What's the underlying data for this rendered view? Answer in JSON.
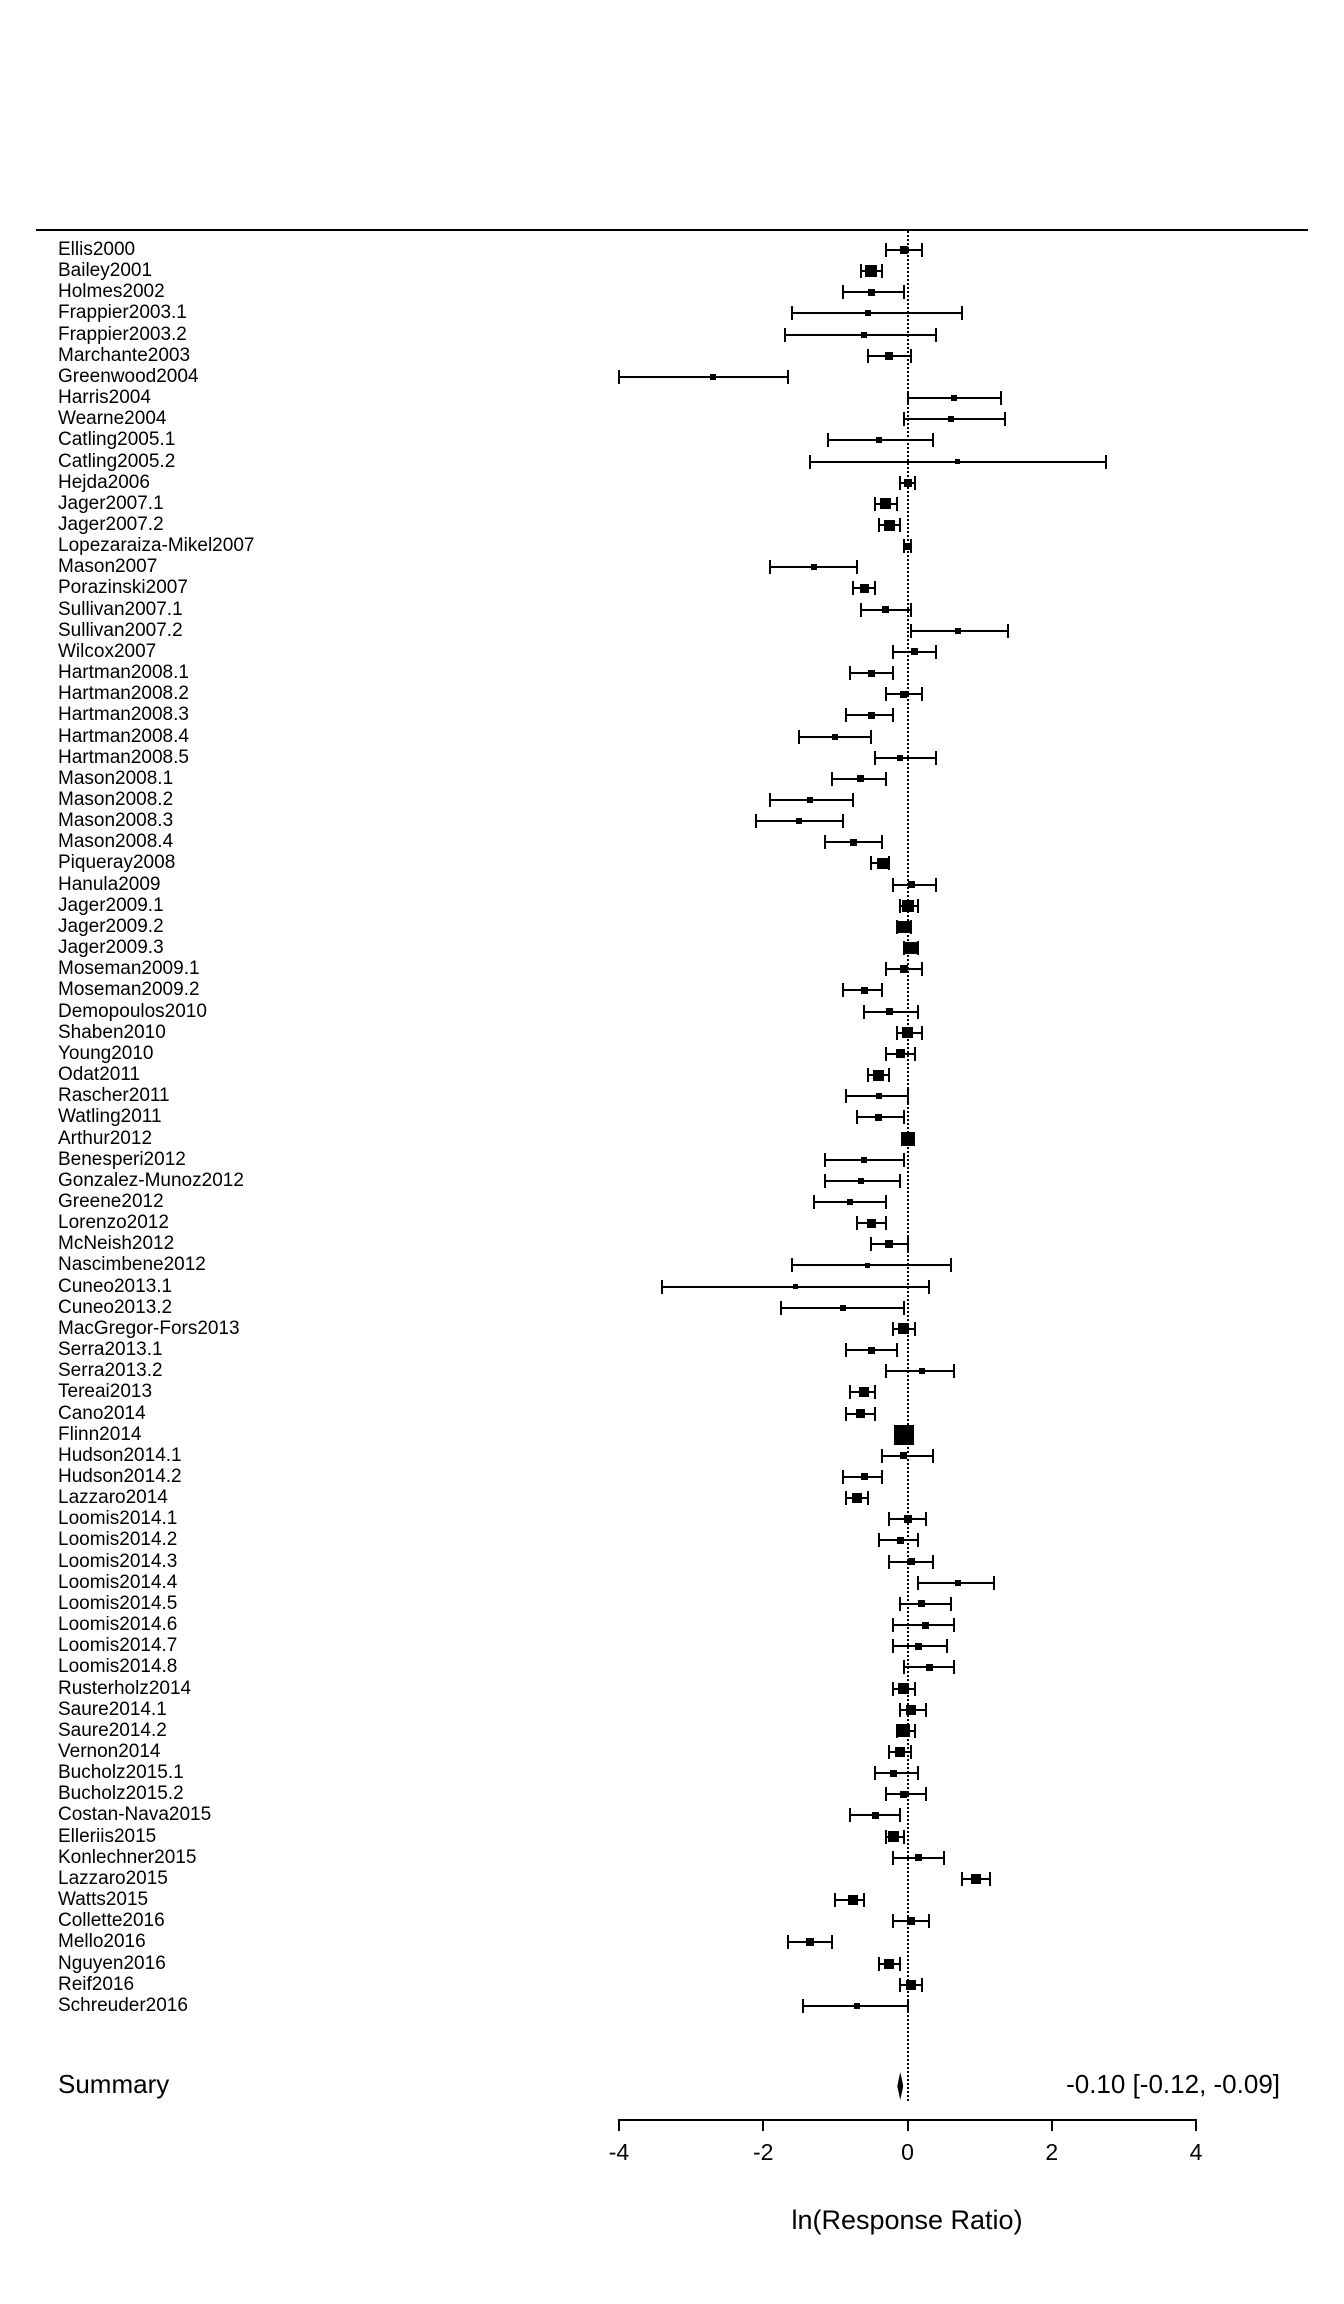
{
  "colors": {
    "marker": "#000000",
    "line": "#000000",
    "text": "#000000",
    "background": "#ffffff"
  },
  "chart_data": {
    "type": "forest",
    "xlabel": "ln(Response Ratio)",
    "xlim": [
      -4,
      4
    ],
    "xticks": [
      -4,
      -2,
      0,
      2,
      4
    ],
    "zero_line": 0,
    "grid": false,
    "studies": [
      {
        "name": "Ellis2000",
        "est": -0.05,
        "lo": -0.3,
        "hi": 0.2,
        "size": 8
      },
      {
        "name": "Bailey2001",
        "est": -0.5,
        "lo": -0.65,
        "hi": -0.35,
        "size": 12
      },
      {
        "name": "Holmes2002",
        "est": -0.5,
        "lo": -0.9,
        "hi": -0.05,
        "size": 7
      },
      {
        "name": "Frappier2003.1",
        "est": -0.55,
        "lo": -1.6,
        "hi": 0.75,
        "size": 6
      },
      {
        "name": "Frappier2003.2",
        "est": -0.6,
        "lo": -1.7,
        "hi": 0.4,
        "size": 6
      },
      {
        "name": "Marchante2003",
        "est": -0.25,
        "lo": -0.55,
        "hi": 0.05,
        "size": 8
      },
      {
        "name": "Greenwood2004",
        "est": -2.7,
        "lo": -4.0,
        "hi": -1.65,
        "size": 6
      },
      {
        "name": "Harris2004",
        "est": 0.65,
        "lo": 0.0,
        "hi": 1.3,
        "size": 6
      },
      {
        "name": "Wearne2004",
        "est": 0.6,
        "lo": -0.05,
        "hi": 1.35,
        "size": 6
      },
      {
        "name": "Catling2005.1",
        "est": -0.4,
        "lo": -1.1,
        "hi": 0.35,
        "size": 6
      },
      {
        "name": "Catling2005.2",
        "est": 0.7,
        "lo": -1.35,
        "hi": 2.75,
        "size": 5
      },
      {
        "name": "Hejda2006",
        "est": 0.0,
        "lo": -0.1,
        "hi": 0.1,
        "size": 8
      },
      {
        "name": "Jager2007.1",
        "est": -0.3,
        "lo": -0.45,
        "hi": -0.15,
        "size": 11
      },
      {
        "name": "Jager2007.2",
        "est": -0.25,
        "lo": -0.4,
        "hi": -0.1,
        "size": 11
      },
      {
        "name": "Lopezaraiza-Mikel2007",
        "est": 0.0,
        "lo": -0.05,
        "hi": 0.05,
        "size": 7
      },
      {
        "name": "Mason2007",
        "est": -1.3,
        "lo": -1.9,
        "hi": -0.7,
        "size": 6
      },
      {
        "name": "Porazinski2007",
        "est": -0.6,
        "lo": -0.75,
        "hi": -0.45,
        "size": 9
      },
      {
        "name": "Sullivan2007.1",
        "est": -0.3,
        "lo": -0.65,
        "hi": 0.05,
        "size": 7
      },
      {
        "name": "Sullivan2007.2",
        "est": 0.7,
        "lo": 0.05,
        "hi": 1.4,
        "size": 6
      },
      {
        "name": "Wilcox2007",
        "est": 0.1,
        "lo": -0.2,
        "hi": 0.4,
        "size": 7
      },
      {
        "name": "Hartman2008.1",
        "est": -0.5,
        "lo": -0.8,
        "hi": -0.2,
        "size": 7
      },
      {
        "name": "Hartman2008.2",
        "est": -0.05,
        "lo": -0.3,
        "hi": 0.2,
        "size": 7
      },
      {
        "name": "Hartman2008.3",
        "est": -0.5,
        "lo": -0.85,
        "hi": -0.2,
        "size": 7
      },
      {
        "name": "Hartman2008.4",
        "est": -1.0,
        "lo": -1.5,
        "hi": -0.5,
        "size": 6
      },
      {
        "name": "Hartman2008.5",
        "est": -0.1,
        "lo": -0.45,
        "hi": 0.4,
        "size": 6
      },
      {
        "name": "Mason2008.1",
        "est": -0.65,
        "lo": -1.05,
        "hi": -0.3,
        "size": 7
      },
      {
        "name": "Mason2008.2",
        "est": -1.35,
        "lo": -1.9,
        "hi": -0.75,
        "size": 6
      },
      {
        "name": "Mason2008.3",
        "est": -1.5,
        "lo": -2.1,
        "hi": -0.9,
        "size": 6
      },
      {
        "name": "Mason2008.4",
        "est": -0.75,
        "lo": -1.15,
        "hi": -0.35,
        "size": 7
      },
      {
        "name": "Piqueray2008",
        "est": -0.35,
        "lo": -0.5,
        "hi": -0.25,
        "size": 11
      },
      {
        "name": "Hanula2009",
        "est": 0.05,
        "lo": -0.2,
        "hi": 0.4,
        "size": 7
      },
      {
        "name": "Jager2009.1",
        "est": 0.0,
        "lo": -0.1,
        "hi": 0.15,
        "size": 12
      },
      {
        "name": "Jager2009.2",
        "est": -0.05,
        "lo": -0.15,
        "hi": 0.05,
        "size": 12
      },
      {
        "name": "Jager2009.3",
        "est": 0.05,
        "lo": -0.05,
        "hi": 0.15,
        "size": 12
      },
      {
        "name": "Moseman2009.1",
        "est": -0.05,
        "lo": -0.3,
        "hi": 0.2,
        "size": 8
      },
      {
        "name": "Moseman2009.2",
        "est": -0.6,
        "lo": -0.9,
        "hi": -0.35,
        "size": 7
      },
      {
        "name": "Demopoulos2010",
        "est": -0.25,
        "lo": -0.6,
        "hi": 0.15,
        "size": 7
      },
      {
        "name": "Shaben2010",
        "est": 0.0,
        "lo": -0.15,
        "hi": 0.2,
        "size": 11
      },
      {
        "name": "Young2010",
        "est": -0.1,
        "lo": -0.3,
        "hi": 0.1,
        "size": 9
      },
      {
        "name": "Odat2011",
        "est": -0.4,
        "lo": -0.55,
        "hi": -0.25,
        "size": 11
      },
      {
        "name": "Rascher2011",
        "est": -0.4,
        "lo": -0.85,
        "hi": 0.0,
        "size": 6
      },
      {
        "name": "Watling2011",
        "est": -0.4,
        "lo": -0.7,
        "hi": -0.05,
        "size": 7
      },
      {
        "name": "Arthur2012",
        "est": 0.0,
        "lo": -0.08,
        "hi": 0.08,
        "size": 14
      },
      {
        "name": "Benesperi2012",
        "est": -0.6,
        "lo": -1.15,
        "hi": -0.05,
        "size": 6
      },
      {
        "name": "Gonzalez-Munoz2012",
        "est": -0.65,
        "lo": -1.15,
        "hi": -0.1,
        "size": 6
      },
      {
        "name": "Greene2012",
        "est": -0.8,
        "lo": -1.3,
        "hi": -0.3,
        "size": 6
      },
      {
        "name": "Lorenzo2012",
        "est": -0.5,
        "lo": -0.7,
        "hi": -0.3,
        "size": 9
      },
      {
        "name": "McNeish2012",
        "est": -0.25,
        "lo": -0.5,
        "hi": 0.0,
        "size": 8
      },
      {
        "name": "Nascimbene2012",
        "est": -0.55,
        "lo": -1.6,
        "hi": 0.6,
        "size": 5
      },
      {
        "name": "Cuneo2013.1",
        "est": -1.55,
        "lo": -3.4,
        "hi": 0.3,
        "size": 5
      },
      {
        "name": "Cuneo2013.2",
        "est": -0.9,
        "lo": -1.75,
        "hi": -0.05,
        "size": 6
      },
      {
        "name": "MacGregor-Fors2013",
        "est": -0.05,
        "lo": -0.2,
        "hi": 0.1,
        "size": 11
      },
      {
        "name": "Serra2013.1",
        "est": -0.5,
        "lo": -0.85,
        "hi": -0.15,
        "size": 7
      },
      {
        "name": "Serra2013.2",
        "est": 0.2,
        "lo": -0.3,
        "hi": 0.65,
        "size": 6
      },
      {
        "name": "Tereai2013",
        "est": -0.6,
        "lo": -0.8,
        "hi": -0.45,
        "size": 10
      },
      {
        "name": "Cano2014",
        "est": -0.65,
        "lo": -0.85,
        "hi": -0.45,
        "size": 9
      },
      {
        "name": "Flinn2014",
        "est": -0.05,
        "lo": -0.12,
        "hi": 0.02,
        "size": 20
      },
      {
        "name": "Hudson2014.1",
        "est": -0.05,
        "lo": -0.35,
        "hi": 0.35,
        "size": 7
      },
      {
        "name": "Hudson2014.2",
        "est": -0.6,
        "lo": -0.9,
        "hi": -0.35,
        "size": 7
      },
      {
        "name": "Lazzaro2014",
        "est": -0.7,
        "lo": -0.85,
        "hi": -0.55,
        "size": 10
      },
      {
        "name": "Loomis2014.1",
        "est": 0.0,
        "lo": -0.25,
        "hi": 0.25,
        "size": 8
      },
      {
        "name": "Loomis2014.2",
        "est": -0.1,
        "lo": -0.4,
        "hi": 0.15,
        "size": 7
      },
      {
        "name": "Loomis2014.3",
        "est": 0.05,
        "lo": -0.25,
        "hi": 0.35,
        "size": 7
      },
      {
        "name": "Loomis2014.4",
        "est": 0.7,
        "lo": 0.15,
        "hi": 1.2,
        "size": 6
      },
      {
        "name": "Loomis2014.5",
        "est": 0.2,
        "lo": -0.1,
        "hi": 0.6,
        "size": 7
      },
      {
        "name": "Loomis2014.6",
        "est": 0.25,
        "lo": -0.2,
        "hi": 0.65,
        "size": 7
      },
      {
        "name": "Loomis2014.7",
        "est": 0.15,
        "lo": -0.2,
        "hi": 0.55,
        "size": 7
      },
      {
        "name": "Loomis2014.8",
        "est": 0.3,
        "lo": -0.05,
        "hi": 0.65,
        "size": 7
      },
      {
        "name": "Rusterholz2014",
        "est": -0.05,
        "lo": -0.2,
        "hi": 0.1,
        "size": 11
      },
      {
        "name": "Saure2014.1",
        "est": 0.05,
        "lo": -0.1,
        "hi": 0.25,
        "size": 10
      },
      {
        "name": "Saure2014.2",
        "est": -0.05,
        "lo": -0.15,
        "hi": 0.1,
        "size": 13
      },
      {
        "name": "Vernon2014",
        "est": -0.1,
        "lo": -0.25,
        "hi": 0.05,
        "size": 10
      },
      {
        "name": "Bucholz2015.1",
        "est": -0.2,
        "lo": -0.45,
        "hi": 0.15,
        "size": 7
      },
      {
        "name": "Bucholz2015.2",
        "est": -0.05,
        "lo": -0.3,
        "hi": 0.25,
        "size": 7
      },
      {
        "name": "Costan-Nava2015",
        "est": -0.45,
        "lo": -0.8,
        "hi": -0.1,
        "size": 7
      },
      {
        "name": "Elleriis2015",
        "est": -0.2,
        "lo": -0.3,
        "hi": -0.05,
        "size": 11
      },
      {
        "name": "Konlechner2015",
        "est": 0.15,
        "lo": -0.2,
        "hi": 0.5,
        "size": 7
      },
      {
        "name": "Lazzaro2015",
        "est": 0.95,
        "lo": 0.75,
        "hi": 1.15,
        "size": 10
      },
      {
        "name": "Watts2015",
        "est": -0.75,
        "lo": -1.0,
        "hi": -0.6,
        "size": 10
      },
      {
        "name": "Collette2016",
        "est": 0.05,
        "lo": -0.2,
        "hi": 0.3,
        "size": 8
      },
      {
        "name": "Mello2016",
        "est": -1.35,
        "lo": -1.65,
        "hi": -1.05,
        "size": 8
      },
      {
        "name": "Nguyen2016",
        "est": -0.25,
        "lo": -0.4,
        "hi": -0.1,
        "size": 10
      },
      {
        "name": "Reif2016",
        "est": 0.05,
        "lo": -0.1,
        "hi": 0.2,
        "size": 10
      },
      {
        "name": "Schreuder2016",
        "est": -0.7,
        "lo": -1.45,
        "hi": 0.0,
        "size": 6
      }
    ],
    "summary": {
      "label": "Summary",
      "est": -0.1,
      "lo": -0.12,
      "hi": -0.09,
      "text": "-0.10 [-0.12, -0.09]"
    }
  }
}
